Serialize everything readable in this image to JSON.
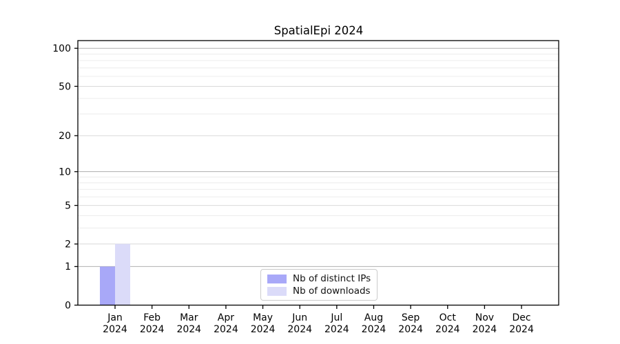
{
  "chart_data": {
    "type": "bar",
    "title": "SpatialEpi 2024",
    "categories": [
      "Jan 2024",
      "Feb 2024",
      "Mar 2024",
      "Apr 2024",
      "May 2024",
      "Jun 2024",
      "Jul 2024",
      "Aug 2024",
      "Sep 2024",
      "Oct 2024",
      "Nov 2024",
      "Dec 2024"
    ],
    "x_tick_months": [
      "Jan",
      "Feb",
      "Mar",
      "Apr",
      "May",
      "Jun",
      "Jul",
      "Aug",
      "Sep",
      "Oct",
      "Nov",
      "Dec"
    ],
    "x_tick_year": "2024",
    "series": [
      {
        "name": "Nb of distinct IPs",
        "color": "#a8a8f8",
        "values": [
          1,
          0,
          0,
          0,
          0,
          0,
          0,
          0,
          0,
          0,
          0,
          0
        ]
      },
      {
        "name": "Nb of downloads",
        "color": "#dbdbf9",
        "values": [
          2,
          0,
          0,
          0,
          0,
          0,
          0,
          0,
          0,
          0,
          0,
          0
        ]
      }
    ],
    "xlabel": "",
    "ylabel": "",
    "yscale": "log1p",
    "ylim": [
      0,
      115
    ],
    "yticks": [
      0,
      1,
      2,
      5,
      10,
      20,
      50,
      100
    ],
    "grid": {
      "on": true,
      "major_ticks": [
        1,
        10,
        100
      ],
      "submajor_ticks": [
        2,
        5,
        20,
        50
      ],
      "minor_ticks": [
        3,
        4,
        6,
        7,
        8,
        9,
        30,
        40,
        60,
        70,
        80,
        90
      ],
      "major_color": "#b0b0b0",
      "submajor_color": "#d9d9d9",
      "minor_color": "#ececec"
    },
    "legend": {
      "position": "lower center"
    },
    "axis_color": "#000000",
    "background_color": "#ffffff"
  }
}
